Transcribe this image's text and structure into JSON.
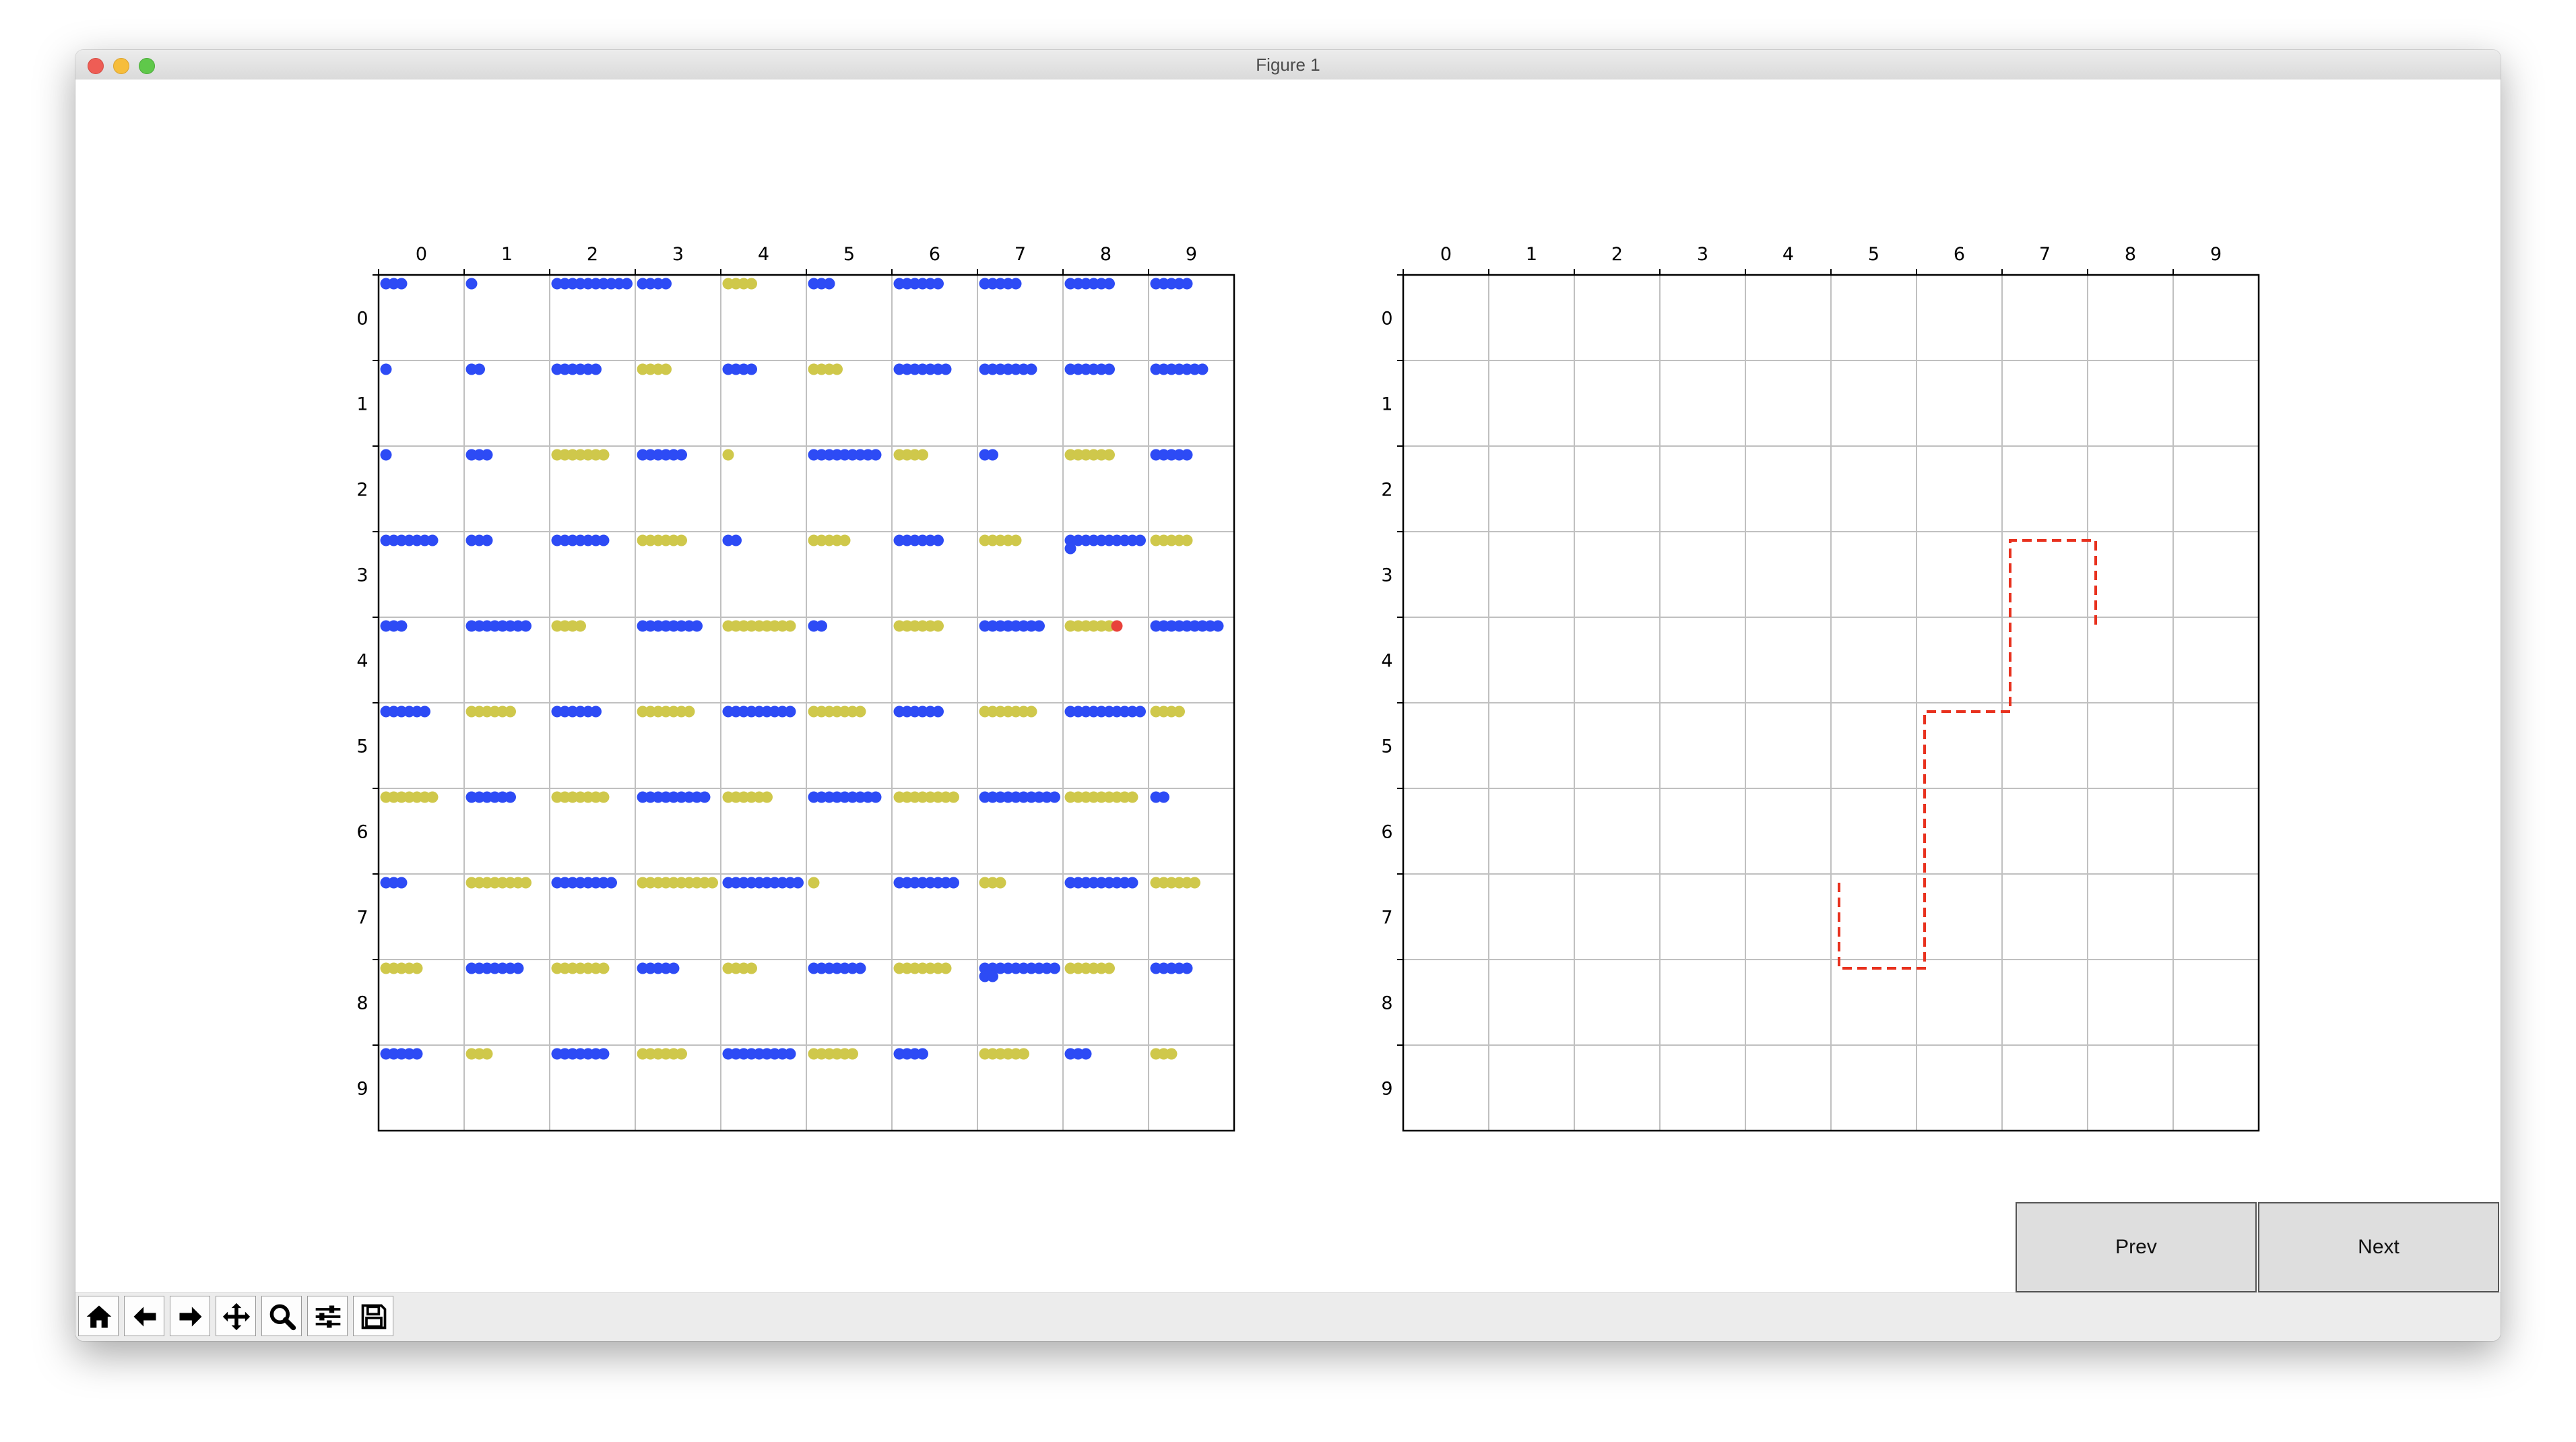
{
  "window": {
    "title": "Figure 1"
  },
  "grid_size": 10,
  "row_labels": [
    "0",
    "1",
    "2",
    "3",
    "4",
    "5",
    "6",
    "7",
    "8",
    "9"
  ],
  "col_labels": [
    "0",
    "1",
    "2",
    "3",
    "4",
    "5",
    "6",
    "7",
    "8",
    "9"
  ],
  "colors": {
    "blue": "#2d4bf5",
    "yellow": "#cfc84b",
    "red_marker": "#e8413a",
    "path": "#e8311e",
    "grid_line": "#c0c0c0"
  },
  "left_board": {
    "cells": [
      [
        [
          "b",
          3
        ],
        [
          "b",
          1
        ],
        [
          "b",
          10
        ],
        [
          "b",
          4
        ],
        [
          "y",
          4
        ],
        [
          "b",
          3
        ],
        [
          "b",
          6
        ],
        [
          "b",
          5
        ],
        [
          "b",
          6
        ],
        [
          "b",
          5
        ]
      ],
      [
        [
          "b",
          1
        ],
        [
          "b",
          2
        ],
        [
          "b",
          6
        ],
        [
          "y",
          4
        ],
        [
          "b",
          4
        ],
        [
          "y",
          4
        ],
        [
          "b",
          7
        ],
        [
          "b",
          7
        ],
        [
          "b",
          6
        ],
        [
          "b",
          7
        ]
      ],
      [
        [
          "b",
          1
        ],
        [
          "b",
          3
        ],
        [
          "y",
          7
        ],
        [
          "b",
          6
        ],
        [
          "y",
          1
        ],
        [
          "b",
          9
        ],
        [
          "y",
          4
        ],
        [
          "b",
          2
        ],
        [
          "y",
          6
        ],
        [
          "b",
          5
        ]
      ],
      [
        [
          "b",
          7
        ],
        [
          "b",
          3
        ],
        [
          "b",
          7
        ],
        [
          "y",
          6
        ],
        [
          "b",
          2
        ],
        [
          "y",
          5
        ],
        [
          "b",
          6
        ],
        [
          "y",
          5
        ],
        [
          "b",
          10,
          "extra"
        ],
        [
          "y",
          5
        ]
      ],
      [
        [
          "b",
          3
        ],
        [
          "b",
          8
        ],
        [
          "y",
          4
        ],
        [
          "b",
          8
        ],
        [
          "y",
          9
        ],
        [
          "b",
          2
        ],
        [
          "y",
          6
        ],
        [
          "b",
          8
        ],
        [
          "y",
          7,
          "red"
        ],
        [
          "b",
          9
        ]
      ],
      [
        [
          "b",
          6
        ],
        [
          "y",
          6
        ],
        [
          "b",
          6
        ],
        [
          "y",
          7
        ],
        [
          "b",
          9
        ],
        [
          "y",
          7
        ],
        [
          "b",
          6
        ],
        [
          "y",
          7
        ],
        [
          "b",
          10
        ],
        [
          "y",
          4
        ]
      ],
      [
        [
          "y",
          7
        ],
        [
          "b",
          6
        ],
        [
          "y",
          7
        ],
        [
          "b",
          9
        ],
        [
          "y",
          6
        ],
        [
          "b",
          9
        ],
        [
          "y",
          8
        ],
        [
          "b",
          10
        ],
        [
          "y",
          9
        ],
        [
          "b",
          2
        ]
      ],
      [
        [
          "b",
          3
        ],
        [
          "y",
          8
        ],
        [
          "b",
          8
        ],
        [
          "y",
          10
        ],
        [
          "b",
          10
        ],
        [
          "y",
          1
        ],
        [
          "b",
          8
        ],
        [
          "y",
          3
        ],
        [
          "b",
          9
        ],
        [
          "y",
          6
        ]
      ],
      [
        [
          "y",
          5
        ],
        [
          "b",
          7
        ],
        [
          "y",
          7
        ],
        [
          "b",
          5
        ],
        [
          "y",
          4
        ],
        [
          "b",
          7
        ],
        [
          "y",
          7
        ],
        [
          "b",
          10,
          "extra2"
        ],
        [
          "y",
          6
        ],
        [
          "b",
          5
        ]
      ],
      [
        [
          "b",
          5
        ],
        [
          "y",
          3
        ],
        [
          "b",
          7
        ],
        [
          "y",
          6
        ],
        [
          "b",
          9
        ],
        [
          "y",
          6
        ],
        [
          "b",
          4
        ],
        [
          "y",
          6
        ],
        [
          "b",
          3
        ],
        [
          "y",
          3
        ]
      ]
    ]
  },
  "right_board": {
    "path": [
      [
        5,
        7
      ],
      [
        5,
        8
      ],
      [
        6,
        8
      ],
      [
        6,
        5
      ],
      [
        7,
        5
      ],
      [
        7,
        3
      ],
      [
        8,
        3
      ],
      [
        8,
        4
      ]
    ]
  },
  "buttons": {
    "prev_label": "Prev",
    "next_label": "Next"
  },
  "toolbar_icons": [
    "home-icon",
    "back-arrow-icon",
    "forward-arrow-icon",
    "pan-icon",
    "zoom-icon",
    "configure-subplots-icon",
    "save-icon"
  ]
}
